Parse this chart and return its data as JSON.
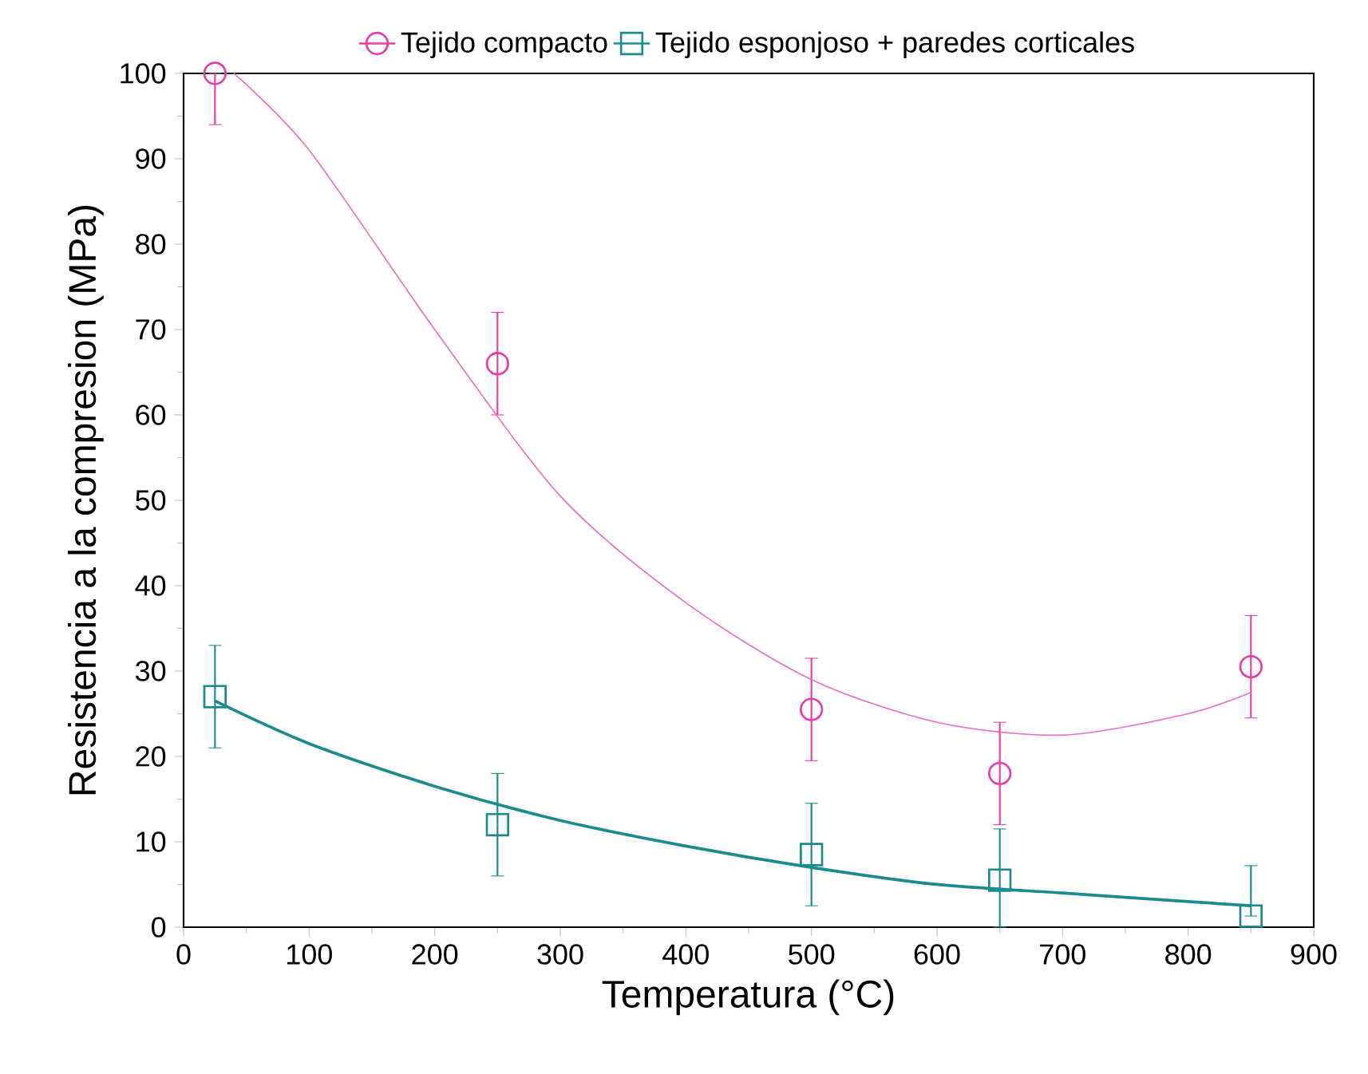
{
  "chart_data": {
    "type": "scatter",
    "xlabel": "Temperatura (°C)",
    "ylabel": "Resistencia a la compresion (MPa)",
    "xlim": [
      0,
      900
    ],
    "xticks": [
      0,
      100,
      200,
      300,
      400,
      500,
      600,
      700,
      800,
      900
    ],
    "ylim": [
      0,
      100
    ],
    "yticks": [
      0,
      10,
      20,
      30,
      40,
      50,
      60,
      70,
      80,
      90,
      100
    ],
    "grid": false,
    "legend": "top",
    "series": [
      {
        "name": "Tejido compacto",
        "marker": "circle",
        "color": "#e83ea6",
        "x": [
          25,
          250,
          500,
          650,
          850
        ],
        "values": [
          100,
          66,
          25.5,
          18,
          30.5
        ],
        "errors": [
          [
            94,
            100
          ],
          [
            60,
            72
          ],
          [
            19.5,
            31.5
          ],
          [
            12,
            24
          ],
          [
            24.5,
            36.5
          ]
        ]
      },
      {
        "name": "Tejido esponjoso + paredes corticales",
        "marker": "square",
        "color": "#1a8c8c",
        "x": [
          25,
          250,
          500,
          650,
          850
        ],
        "values": [
          27,
          12,
          8.5,
          5.5,
          1.3
        ],
        "errors": [
          [
            21,
            33
          ],
          [
            6,
            18
          ],
          [
            2.5,
            14.5
          ],
          [
            0,
            11.5
          ],
          [
            1.3,
            7.2
          ]
        ]
      },
      {
        "type": "line",
        "color": "#f06cc0",
        "x": [
          40,
          100,
          200,
          300,
          400,
          500,
          600,
          700,
          800,
          850
        ],
        "values": [
          100,
          91,
          70,
          50.5,
          38,
          29,
          24,
          22.5,
          25,
          27.5
        ]
      },
      {
        "type": "line",
        "color": "#1a8c8c",
        "x": [
          25,
          100,
          200,
          300,
          400,
          500,
          600,
          700,
          800,
          850
        ],
        "values": [
          26.5,
          21.5,
          16.5,
          12.5,
          9.5,
          7,
          5,
          4,
          3,
          2.5
        ]
      }
    ]
  }
}
